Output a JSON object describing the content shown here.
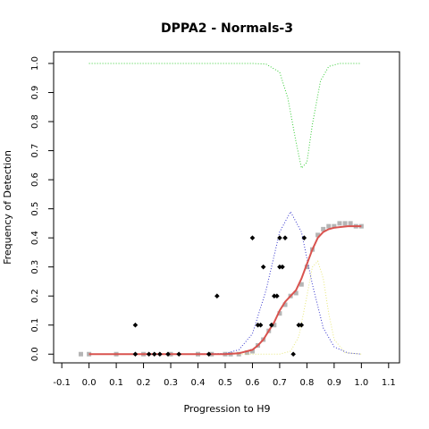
{
  "chart_data": {
    "type": "scatter",
    "title": "DPPA2 - Normals-3",
    "xlabel": "Progression to H9",
    "ylabel": "Frequency of Detection",
    "xlim": [
      -0.13,
      1.14
    ],
    "ylim": [
      -0.03,
      1.04
    ],
    "x_ticks": [
      -0.1,
      0.0,
      0.1,
      0.2,
      0.3,
      0.4,
      0.5,
      0.6,
      0.7,
      0.8,
      0.9,
      1.0,
      1.1
    ],
    "y_ticks": [
      0.0,
      0.1,
      0.2,
      0.3,
      0.4,
      0.5,
      0.6,
      0.7,
      0.8,
      0.9,
      1.0
    ],
    "grid": false,
    "colors": {
      "points": "#000000",
      "gray_points": "#b5b5b5",
      "fit_line": "#d9534f",
      "blue_curve": "#3333cc",
      "green_curve": "#33cc33",
      "yellow_curve": "#e8e87a"
    },
    "black_points": [
      {
        "x": 0.17,
        "y": 0.1
      },
      {
        "x": 0.17,
        "y": 0.0
      },
      {
        "x": 0.22,
        "y": 0.0
      },
      {
        "x": 0.24,
        "y": 0.0
      },
      {
        "x": 0.26,
        "y": 0.0
      },
      {
        "x": 0.29,
        "y": 0.0
      },
      {
        "x": 0.33,
        "y": 0.0
      },
      {
        "x": 0.44,
        "y": 0.0
      },
      {
        "x": 0.47,
        "y": 0.2
      },
      {
        "x": 0.6,
        "y": 0.4
      },
      {
        "x": 0.62,
        "y": 0.1
      },
      {
        "x": 0.63,
        "y": 0.1
      },
      {
        "x": 0.64,
        "y": 0.3
      },
      {
        "x": 0.67,
        "y": 0.1
      },
      {
        "x": 0.68,
        "y": 0.2
      },
      {
        "x": 0.69,
        "y": 0.2
      },
      {
        "x": 0.7,
        "y": 0.4
      },
      {
        "x": 0.7,
        "y": 0.3
      },
      {
        "x": 0.71,
        "y": 0.3
      },
      {
        "x": 0.72,
        "y": 0.4
      },
      {
        "x": 0.75,
        "y": 0.0
      },
      {
        "x": 0.77,
        "y": 0.1
      },
      {
        "x": 0.78,
        "y": 0.1
      },
      {
        "x": 0.79,
        "y": 0.4
      }
    ],
    "series": [
      {
        "kind": "fitted_line",
        "x": [
          0.0,
          0.1,
          0.2,
          0.3,
          0.4,
          0.5,
          0.55,
          0.6,
          0.62,
          0.64,
          0.66,
          0.68,
          0.7,
          0.72,
          0.74,
          0.76,
          0.78,
          0.8,
          0.82,
          0.84,
          0.86,
          0.88,
          0.9,
          0.95,
          1.0
        ],
        "y": [
          0.0,
          0.0,
          0.0,
          0.0,
          0.0,
          0.0,
          0.003,
          0.015,
          0.03,
          0.05,
          0.08,
          0.11,
          0.15,
          0.18,
          0.2,
          0.22,
          0.26,
          0.31,
          0.36,
          0.4,
          0.42,
          0.43,
          0.435,
          0.44,
          0.44
        ]
      },
      {
        "kind": "blue_dotted",
        "x": [
          0.0,
          0.3,
          0.5,
          0.55,
          0.6,
          0.65,
          0.7,
          0.74,
          0.78,
          0.82,
          0.86,
          0.9,
          0.95,
          1.0
        ],
        "y": [
          0.0,
          0.0,
          0.002,
          0.015,
          0.07,
          0.22,
          0.42,
          0.49,
          0.42,
          0.24,
          0.09,
          0.025,
          0.004,
          0.0
        ]
      },
      {
        "kind": "green_dotted",
        "x": [
          0.0,
          0.5,
          0.6,
          0.65,
          0.7,
          0.73,
          0.76,
          0.78,
          0.8,
          0.82,
          0.85,
          0.88,
          0.92,
          1.0
        ],
        "y": [
          1.0,
          1.0,
          1.0,
          0.998,
          0.97,
          0.88,
          0.73,
          0.64,
          0.66,
          0.79,
          0.94,
          0.99,
          1.0,
          1.0
        ]
      },
      {
        "kind": "yellow_dotted",
        "x": [
          0.0,
          0.6,
          0.7,
          0.74,
          0.77,
          0.8,
          0.82,
          0.84,
          0.86,
          0.88,
          0.9,
          0.94,
          1.0
        ],
        "y": [
          0.0,
          0.0,
          0.0,
          0.01,
          0.06,
          0.2,
          0.3,
          0.32,
          0.26,
          0.14,
          0.05,
          0.005,
          0.0
        ]
      },
      {
        "kind": "gray_band",
        "x": [
          -0.03,
          0.0,
          0.1,
          0.2,
          0.3,
          0.4,
          0.45,
          0.5,
          0.52,
          0.55,
          0.58,
          0.6,
          0.62,
          0.64,
          0.66,
          0.68,
          0.7,
          0.72,
          0.74,
          0.76,
          0.78,
          0.8,
          0.82,
          0.84,
          0.86,
          0.88,
          0.9,
          0.92,
          0.94,
          0.96,
          0.98,
          1.0
        ],
        "y": [
          0.0,
          0.0,
          0.0,
          0.0,
          0.0,
          0.0,
          0.0,
          0.0,
          0.0,
          0.0,
          0.005,
          0.01,
          0.03,
          0.05,
          0.08,
          0.1,
          0.14,
          0.17,
          0.2,
          0.21,
          0.24,
          0.3,
          0.36,
          0.41,
          0.43,
          0.44,
          0.44,
          0.45,
          0.45,
          0.45,
          0.44,
          0.44
        ]
      }
    ]
  }
}
